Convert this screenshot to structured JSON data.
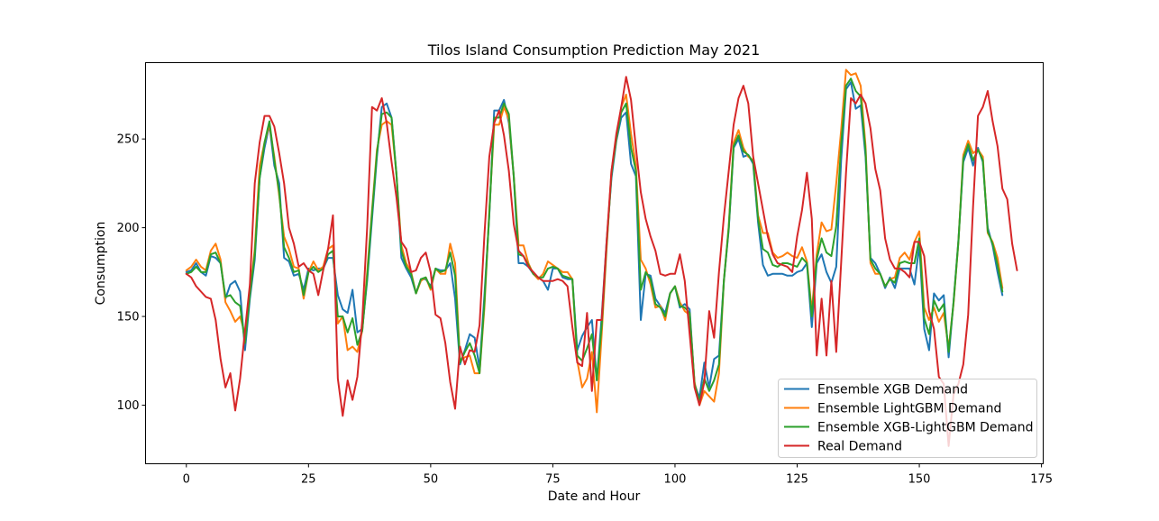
{
  "chart_data": {
    "type": "line",
    "title": "Tilos Island Consumption Prediction May 2021",
    "xlabel": "Date and Hour",
    "ylabel": "Consumption",
    "xlim": [
      -8.35,
      175.35
    ],
    "ylim": [
      67,
      293
    ],
    "xticks": [
      0,
      25,
      50,
      75,
      100,
      125,
      150,
      175
    ],
    "yticks": [
      100,
      150,
      200,
      250
    ],
    "grid": false,
    "legend_position": "lower right",
    "series": [
      {
        "name": "Ensemble XGB Demand",
        "color": "#1f77b4",
        "values": [
          175,
          176,
          180,
          175,
          173,
          184,
          183,
          180,
          160,
          168,
          170,
          164,
          131,
          160,
          182,
          228,
          245,
          258,
          235,
          225,
          183,
          181,
          173,
          174,
          165,
          177,
          176,
          177,
          177,
          183,
          183,
          162,
          154,
          152,
          165,
          141,
          143,
          170,
          205,
          240,
          268,
          270,
          262,
          230,
          183,
          177,
          172,
          163,
          171,
          171,
          167,
          177,
          176,
          176,
          180,
          160,
          123,
          131,
          140,
          138,
          121,
          162,
          207,
          266,
          266,
          272,
          259,
          229,
          180,
          180,
          178,
          174,
          172,
          170,
          165,
          177,
          177,
          172,
          171,
          171,
          131,
          139,
          144,
          148,
          114,
          150,
          192,
          228,
          249,
          262,
          265,
          236,
          229,
          148,
          174,
          173,
          160,
          156,
          152,
          163,
          167,
          155,
          157,
          154,
          112,
          104,
          124,
          110,
          126,
          128,
          170,
          199,
          245,
          250,
          240,
          241,
          236,
          203,
          179,
          173,
          174,
          174,
          174,
          173,
          173,
          175,
          176,
          180,
          144,
          180,
          185,
          175,
          169,
          178,
          238,
          278,
          282,
          267,
          269,
          240,
          183,
          180,
          174,
          166,
          172,
          166,
          177,
          177,
          177,
          168,
          190,
          143,
          131,
          163,
          159,
          162,
          127,
          158,
          193,
          237,
          245,
          235,
          245,
          237,
          200,
          190,
          175,
          162
        ],
        "x0": 0
      },
      {
        "name": "Ensemble LightGBM Demand",
        "color": "#ff7f0e",
        "values": [
          176,
          178,
          182,
          178,
          176,
          187,
          191,
          182,
          158,
          153,
          147,
          150,
          140,
          163,
          188,
          235,
          248,
          258,
          240,
          218,
          195,
          188,
          178,
          177,
          160,
          175,
          181,
          176,
          178,
          188,
          190,
          146,
          150,
          131,
          133,
          130,
          142,
          175,
          210,
          244,
          258,
          260,
          258,
          230,
          190,
          180,
          175,
          163,
          170,
          172,
          165,
          177,
          174,
          174,
          191,
          180,
          125,
          127,
          128,
          118,
          118,
          155,
          210,
          258,
          258,
          268,
          261,
          229,
          190,
          190,
          180,
          174,
          171,
          174,
          181,
          179,
          177,
          175,
          175,
          171,
          125,
          110,
          115,
          130,
          96,
          140,
          188,
          232,
          250,
          268,
          275,
          253,
          235,
          182,
          177,
          168,
          155,
          156,
          148,
          163,
          167,
          158,
          153,
          151,
          113,
          100,
          108,
          105,
          102,
          118,
          170,
          201,
          248,
          255,
          245,
          240,
          238,
          207,
          197,
          197,
          186,
          183,
          184,
          186,
          184,
          183,
          189,
          181,
          153,
          185,
          203,
          198,
          199,
          225,
          255,
          289,
          286,
          287,
          280,
          246,
          180,
          174,
          174,
          167,
          171,
          172,
          183,
          186,
          182,
          192,
          198,
          155,
          148,
          155,
          147,
          152,
          132,
          157,
          192,
          241,
          249,
          242,
          244,
          240,
          197,
          192,
          183,
          166
        ],
        "x0": 0
      },
      {
        "name": "Ensemble XGB-LightGBM Demand",
        "color": "#2ca02c",
        "values": [
          174,
          175,
          178,
          175,
          175,
          185,
          186,
          180,
          161,
          162,
          158,
          156,
          135,
          162,
          185,
          228,
          248,
          260,
          238,
          220,
          189,
          183,
          175,
          176,
          162,
          175,
          178,
          175,
          177,
          185,
          187,
          150,
          150,
          141,
          149,
          134,
          142,
          172,
          208,
          242,
          264,
          265,
          262,
          230,
          187,
          178,
          174,
          163,
          171,
          172,
          166,
          177,
          175,
          176,
          186,
          173,
          124,
          130,
          135,
          128,
          118,
          158,
          208,
          262,
          262,
          270,
          264,
          229,
          185,
          184,
          179,
          174,
          172,
          172,
          177,
          178,
          177,
          173,
          172,
          171,
          128,
          125,
          132,
          140,
          114,
          145,
          190,
          230,
          250,
          265,
          270,
          245,
          232,
          165,
          175,
          171,
          157,
          155,
          150,
          163,
          167,
          156,
          155,
          152,
          112,
          102,
          115,
          108,
          114,
          123,
          170,
          200,
          246,
          252,
          243,
          241,
          237,
          205,
          188,
          186,
          179,
          178,
          180,
          180,
          179,
          178,
          183,
          180,
          150,
          182,
          194,
          186,
          184,
          201,
          247,
          280,
          284,
          277,
          274,
          243,
          182,
          177,
          174,
          167,
          171,
          169,
          180,
          181,
          180,
          180,
          194,
          149,
          140,
          159,
          153,
          157,
          130,
          158,
          192,
          239,
          247,
          238,
          244,
          238,
          198,
          191,
          179,
          164
        ],
        "x0": 0
      },
      {
        "name": "Real Demand",
        "color": "#d62728",
        "values": [
          174,
          172,
          167,
          164,
          161,
          160,
          148,
          126,
          110,
          118,
          97,
          115,
          142,
          168,
          225,
          248,
          263,
          263,
          257,
          242,
          225,
          200,
          191,
          178,
          180,
          176,
          174,
          162,
          176,
          188,
          207,
          115,
          94,
          114,
          103,
          116,
          148,
          200,
          268,
          266,
          273,
          259,
          237,
          217,
          192,
          188,
          175,
          176,
          183,
          186,
          175,
          151,
          149,
          135,
          113,
          98,
          133,
          123,
          131,
          130,
          145,
          196,
          240,
          259,
          266,
          252,
          232,
          202,
          187,
          184,
          178,
          175,
          172,
          170,
          170,
          170,
          171,
          170,
          167,
          144,
          124,
          122,
          152,
          108,
          148,
          148,
          192,
          232,
          253,
          268,
          285,
          272,
          245,
          220,
          205,
          195,
          187,
          174,
          173,
          174,
          174,
          185,
          170,
          140,
          110,
          100,
          113,
          153,
          138,
          175,
          206,
          232,
          258,
          273,
          280,
          270,
          240,
          225,
          210,
          195,
          185,
          180,
          179,
          178,
          175,
          195,
          210,
          231,
          205,
          128,
          160,
          128,
          170,
          130,
          180,
          231,
          273,
          270,
          275,
          270,
          256,
          233,
          221,
          194,
          182,
          177,
          177,
          175,
          172,
          192,
          192,
          184,
          153,
          143,
          116,
          112,
          77,
          106,
          112,
          123,
          151,
          212,
          263,
          268,
          277,
          260,
          246,
          222,
          216,
          191,
          176
        ],
        "x0": 0
      }
    ]
  }
}
